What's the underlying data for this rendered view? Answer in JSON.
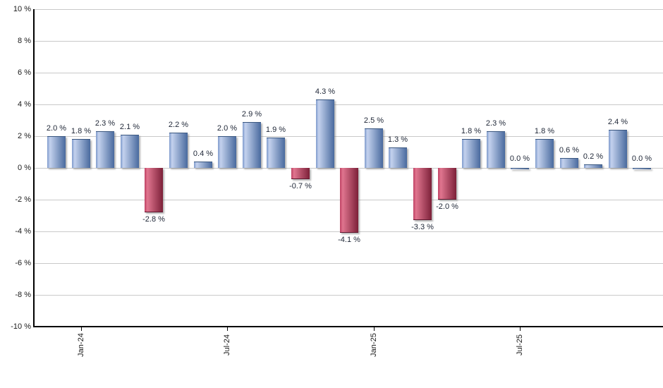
{
  "chart_data": {
    "type": "bar",
    "title": "",
    "unit": "%",
    "grid": true,
    "ylim": [
      -10,
      10
    ],
    "values": [
      2.0,
      1.8,
      2.3,
      2.1,
      -2.8,
      2.2,
      0.4,
      2.0,
      2.9,
      1.9,
      -0.7,
      4.3,
      -4.1,
      2.5,
      1.3,
      -3.3,
      -2.0,
      1.8,
      2.3,
      0.0,
      1.8,
      0.6,
      0.2,
      2.4,
      0.0
    ],
    "bar_labels": [
      "2.0 %",
      "1.8 %",
      "2.3 %",
      "2.1 %",
      "-2.8 %",
      "2.2 %",
      "0.4 %",
      "2.0 %",
      "2.9 %",
      "1.9 %",
      "-0.7 %",
      "4.3 %",
      "-4.1 %",
      "2.5 %",
      "1.3 %",
      "-3.3 %",
      "-2.0 %",
      "1.8 %",
      "2.3 %",
      "0.0 %",
      "1.8 %",
      "0.6 %",
      "0.2 %",
      "2.4 %",
      "0.0 %"
    ],
    "x_ticks": [
      {
        "label": "Jan-24",
        "bar_index": 1
      },
      {
        "label": "Jul-24",
        "bar_index": 7
      },
      {
        "label": "Jan-25",
        "bar_index": 13
      },
      {
        "label": "Jul-25",
        "bar_index": 19
      }
    ],
    "y_ticks": [
      {
        "label": "10 %",
        "value": 10
      },
      {
        "label": "8 %",
        "value": 8
      },
      {
        "label": "6 %",
        "value": 6
      },
      {
        "label": "4 %",
        "value": 4
      },
      {
        "label": "2 %",
        "value": 2
      },
      {
        "label": "0 %",
        "value": 0
      },
      {
        "label": "-2 %",
        "value": -2
      },
      {
        "label": "-4 %",
        "value": -4
      },
      {
        "label": "-6 %",
        "value": -6
      },
      {
        "label": "-8 %",
        "value": -8
      },
      {
        "label": "-10 %",
        "value": -10
      }
    ],
    "colors": {
      "positive_left": "#7E9ACC",
      "positive_light": "#C4D2EE",
      "positive_dark": "#496A9E",
      "positive_edge": "#3A5780",
      "negative_left": "#BE4062",
      "negative_light": "#E0758F",
      "negative_dark": "#7C2038",
      "negative_edge": "#601830",
      "grid": "#C9C9C9",
      "axis": "#000000",
      "value_label": "#1E2636"
    }
  }
}
